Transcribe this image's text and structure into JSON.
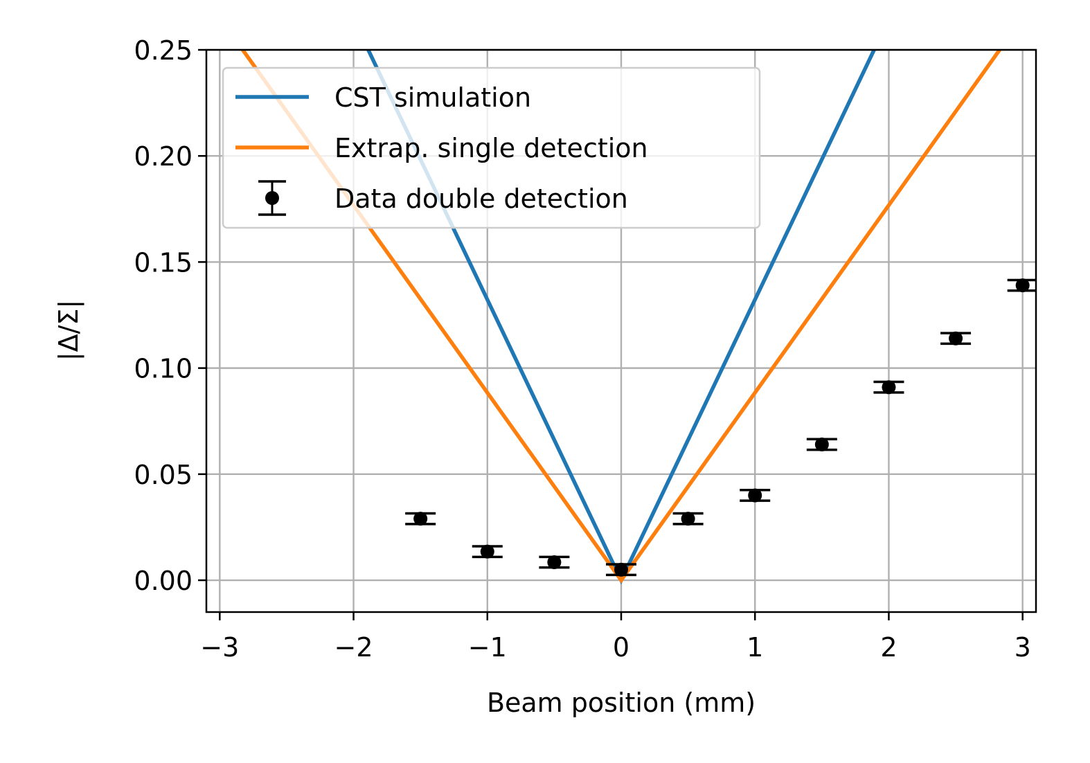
{
  "chart_data": {
    "type": "line",
    "title": "",
    "xlabel": "Beam position (mm)",
    "ylabel": "|Δ/Σ|",
    "xlim": [
      -3.1,
      3.1
    ],
    "ylim": [
      -0.015,
      0.25
    ],
    "xticks": [
      -3,
      -2,
      -1,
      0,
      1,
      2,
      3
    ],
    "xtick_labels": [
      "−3",
      "−2",
      "−1",
      "0",
      "1",
      "2",
      "3"
    ],
    "yticks": [
      0.0,
      0.05,
      0.1,
      0.15,
      0.2,
      0.25
    ],
    "ytick_labels": [
      "0.00",
      "0.05",
      "0.10",
      "0.15",
      "0.20",
      "0.25"
    ],
    "grid": true,
    "legend_position": "top-left",
    "series": [
      {
        "name": "CST simulation",
        "type": "line",
        "color": "#1f77b4",
        "x": [
          -3.1,
          0,
          3.1
        ],
        "y": [
          0.41,
          0.0,
          0.41
        ]
      },
      {
        "name": "Extrap. single detection",
        "type": "line",
        "color": "#ff7f0e",
        "x": [
          -3.1,
          0,
          3.1
        ],
        "y": [
          0.274,
          0.0,
          0.274
        ]
      },
      {
        "name": "Data double detection",
        "type": "errorbar",
        "color": "#000000",
        "x": [
          -1.5,
          -1.0,
          -0.5,
          0.0,
          0.5,
          1.0,
          1.5,
          2.0,
          2.5,
          3.0
        ],
        "y": [
          0.029,
          0.0135,
          0.0085,
          0.005,
          0.029,
          0.04,
          0.064,
          0.091,
          0.114,
          0.139
        ],
        "yerr": [
          0.0025,
          0.0025,
          0.0025,
          0.0025,
          0.0025,
          0.0025,
          0.0025,
          0.0025,
          0.0025,
          0.0025
        ]
      }
    ]
  }
}
